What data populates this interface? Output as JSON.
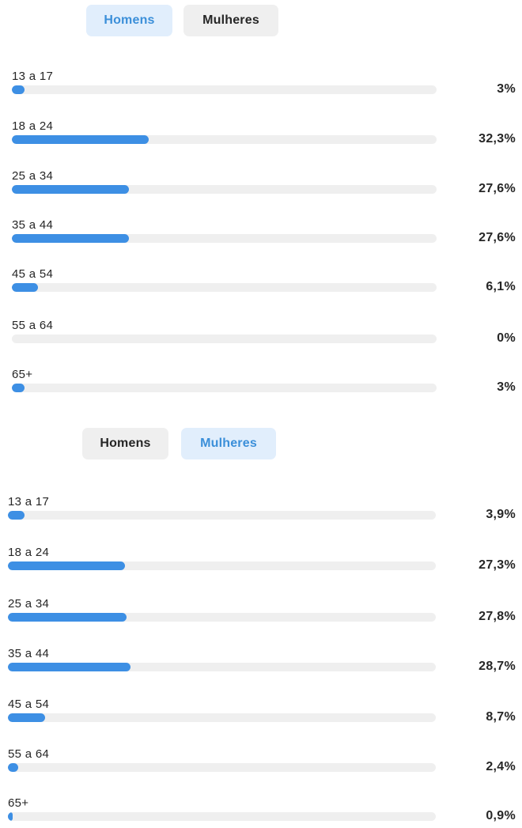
{
  "panels": [
    {
      "tabs": [
        {
          "label": "Homens",
          "active": true
        },
        {
          "label": "Mulheres",
          "active": false
        }
      ],
      "rows": [
        {
          "range": "13 a 17",
          "percent_label": "3%",
          "fraction": 0.03
        },
        {
          "range": "18 a 24",
          "percent_label": "32,3%",
          "fraction": 0.323
        },
        {
          "range": "25 a 34",
          "percent_label": "27,6%",
          "fraction": 0.276
        },
        {
          "range": "35 a 44",
          "percent_label": "27,6%",
          "fraction": 0.276
        },
        {
          "range": "45 a 54",
          "percent_label": "6,1%",
          "fraction": 0.061
        },
        {
          "range": "55 a 64",
          "percent_label": "0%",
          "fraction": 0.0
        },
        {
          "range": "65+",
          "percent_label": "3%",
          "fraction": 0.03
        }
      ]
    },
    {
      "tabs": [
        {
          "label": "Homens",
          "active": false
        },
        {
          "label": "Mulheres",
          "active": true
        }
      ],
      "rows": [
        {
          "range": "13 a 17",
          "percent_label": "3,9%",
          "fraction": 0.039
        },
        {
          "range": "18 a 24",
          "percent_label": "27,3%",
          "fraction": 0.273
        },
        {
          "range": "25 a 34",
          "percent_label": "27,8%",
          "fraction": 0.278
        },
        {
          "range": "35 a 44",
          "percent_label": "28,7%",
          "fraction": 0.287
        },
        {
          "range": "45 a 54",
          "percent_label": "8,7%",
          "fraction": 0.087
        },
        {
          "range": "55 a 64",
          "percent_label": "2,4%",
          "fraction": 0.024
        },
        {
          "range": "65+",
          "percent_label": "0,9%",
          "fraction": 0.009
        }
      ]
    }
  ],
  "colors": {
    "bar_fill": "#3d8fe4",
    "bar_track": "#efefef",
    "tab_active_bg": "#e1eefc",
    "tab_active_text": "#3b8fd9",
    "tab_inactive_bg": "#efefef"
  }
}
